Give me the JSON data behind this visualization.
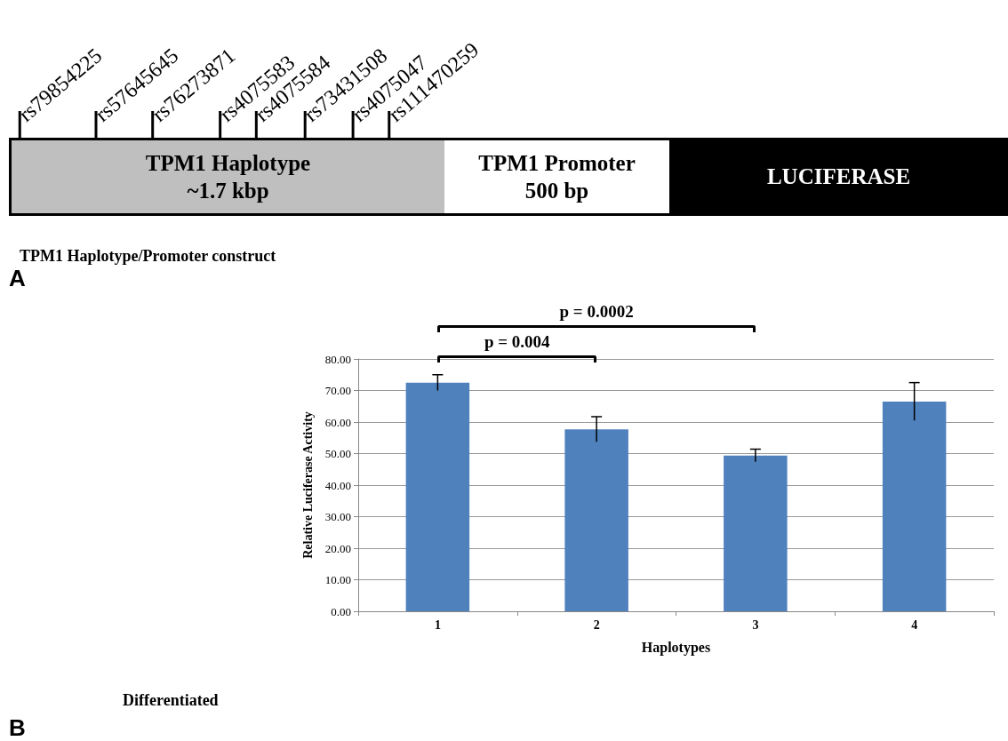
{
  "chart_data": [
    {
      "type": "other",
      "categories": [
        "rs79854225",
        "rs57645645",
        "rs76273871",
        "rs4075583",
        "rs4075584",
        "rs73431508",
        "rs4075047",
        "rs111470259"
      ],
      "annotations": [
        "TPM1 Haplotype",
        "~1.7 kbp",
        "TPM1 Promoter",
        "500 bp",
        "LUCIFERASE",
        "TPM1 Haplotype/Promoter construct",
        "A"
      ]
    },
    {
      "type": "bar",
      "categories": [
        "1",
        "2",
        "3",
        "4"
      ],
      "values": [
        72.5,
        57.7,
        49.4,
        66.5
      ],
      "errors": [
        2.5,
        4,
        2,
        6
      ],
      "color": "#4f81bd",
      "xlabel": "Haplotypes",
      "ylabel": "Relative Luciferase Activity",
      "ylim": [
        0,
        80
      ],
      "yticks": [
        {
          "value": 0,
          "label": "0.00"
        },
        {
          "value": 10,
          "label": "10.00"
        },
        {
          "value": 20,
          "label": "20.00"
        },
        {
          "value": 30,
          "label": "30.00"
        },
        {
          "value": 40,
          "label": "40.00"
        },
        {
          "value": 50,
          "label": "50.00"
        },
        {
          "value": 60,
          "label": "60.00"
        },
        {
          "value": 70,
          "label": "70.00"
        },
        {
          "value": 80,
          "label": "80.00"
        }
      ],
      "grid": "y",
      "annotations": [
        "p = 0.004",
        "p = 0.0002",
        "Differentiated",
        "B"
      ]
    }
  ]
}
